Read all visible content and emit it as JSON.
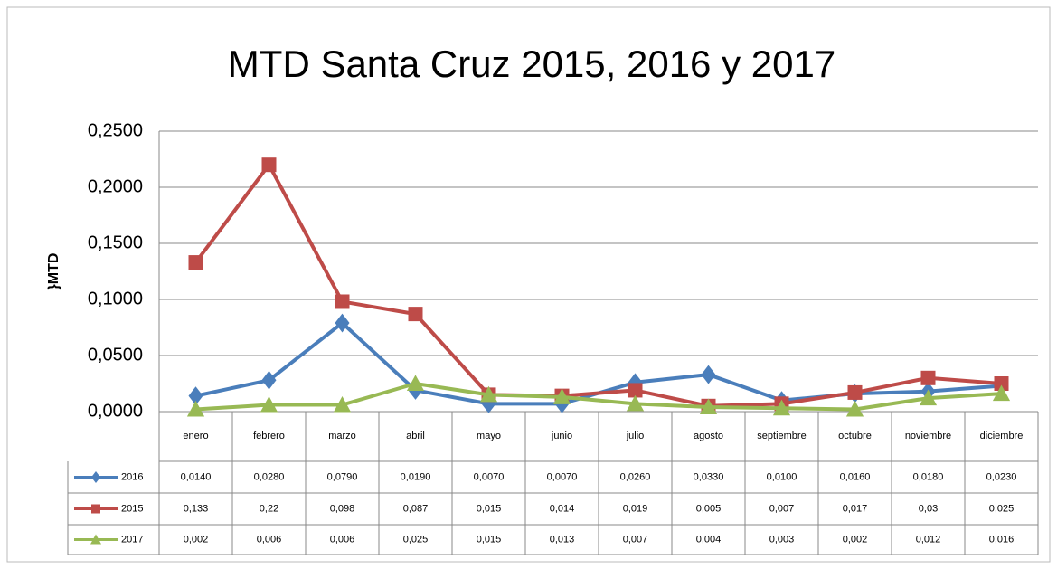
{
  "chart_data": {
    "type": "line",
    "title": "MTD Santa Cruz 2015, 2016 y 2017",
    "y_label": "}MTD",
    "categories": [
      "enero",
      "febrero",
      "marzo",
      "abril",
      "mayo",
      "junio",
      "julio",
      "agosto",
      "septiembre",
      "octubre",
      "noviembre",
      "diciembre"
    ],
    "series": [
      {
        "name": "2016",
        "color": "#4a7ebb",
        "marker": "diamond",
        "values": [
          0.014,
          0.028,
          0.079,
          0.019,
          0.007,
          0.007,
          0.026,
          0.033,
          0.01,
          0.016,
          0.018,
          0.023
        ],
        "value_labels": [
          "0,0140",
          "0,0280",
          "0,0790",
          "0,0190",
          "0,0070",
          "0,0070",
          "0,0260",
          "0,0330",
          "0,0100",
          "0,0160",
          "0,0180",
          "0,0230"
        ]
      },
      {
        "name": "2015",
        "color": "#be4b48",
        "marker": "square",
        "values": [
          0.133,
          0.22,
          0.098,
          0.087,
          0.015,
          0.014,
          0.019,
          0.005,
          0.007,
          0.017,
          0.03,
          0.025
        ],
        "value_labels": [
          "0,133",
          "0,22",
          "0,098",
          "0,087",
          "0,015",
          "0,014",
          "0,019",
          "0,005",
          "0,007",
          "0,017",
          "0,03",
          "0,025"
        ]
      },
      {
        "name": "2017",
        "color": "#98b954",
        "marker": "triangle",
        "values": [
          0.002,
          0.006,
          0.006,
          0.025,
          0.015,
          0.013,
          0.007,
          0.004,
          0.003,
          0.002,
          0.012,
          0.016
        ],
        "value_labels": [
          "0,002",
          "0,006",
          "0,006",
          "0,025",
          "0,015",
          "0,013",
          "0,007",
          "0,004",
          "0,003",
          "0,002",
          "0,012",
          "0,016"
        ]
      }
    ],
    "ylim": [
      0,
      0.25
    ],
    "yticks": [
      {
        "value": 0,
        "label": "0,0000"
      },
      {
        "value": 0.05,
        "label": "0,0500"
      },
      {
        "value": 0.1,
        "label": "0,1000"
      },
      {
        "value": 0.15,
        "label": "0,1500"
      },
      {
        "value": 0.2,
        "label": "0,2000"
      },
      {
        "value": 0.25,
        "label": "0,2500"
      }
    ],
    "grid": true
  }
}
